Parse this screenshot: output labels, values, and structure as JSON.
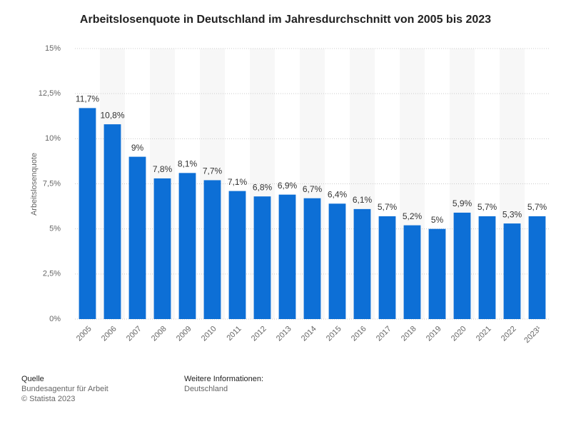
{
  "chart_data": {
    "type": "bar",
    "title": "Arbeitslosenquote in Deutschland im Jahresdurchschnitt von 2005 bis 2023",
    "y_label": "Arbeitslosenquote",
    "categories": [
      "2005",
      "2006",
      "2007",
      "2008",
      "2009",
      "2010",
      "2011",
      "2012",
      "2013",
      "2014",
      "2015",
      "2016",
      "2017",
      "2018",
      "2019",
      "2020",
      "2021",
      "2022",
      "2023¹"
    ],
    "values": [
      11.7,
      10.8,
      9,
      7.8,
      8.1,
      7.7,
      7.1,
      6.8,
      6.9,
      6.7,
      6.4,
      6.1,
      5.7,
      5.2,
      5,
      5.9,
      5.7,
      5.3,
      5.7
    ],
    "value_labels": [
      "11,7%",
      "10,8%",
      "9%",
      "7,8%",
      "8,1%",
      "7,7%",
      "7,1%",
      "6,8%",
      "6,9%",
      "6,7%",
      "6,4%",
      "6,1%",
      "5,7%",
      "5,2%",
      "5%",
      "5,9%",
      "5,7%",
      "5,3%",
      "5,7%"
    ],
    "color": "#0d6fd6",
    "ylim": [
      0,
      15
    ],
    "yticks": [
      {
        "value": 0,
        "label": "0%"
      },
      {
        "value": 2.5,
        "label": "2,5%"
      },
      {
        "value": 5,
        "label": "5%"
      },
      {
        "value": 7.5,
        "label": "7,5%"
      },
      {
        "value": 10,
        "label": "10%"
      },
      {
        "value": 12.5,
        "label": "12,5%"
      },
      {
        "value": 15,
        "label": "15%"
      }
    ],
    "grid": true
  },
  "footer": {
    "source_heading": "Quelle",
    "source": "Bundesagentur für Arbeit",
    "copyright": "© Statista 2023",
    "info_heading": "Weitere Informationen:",
    "info": "Deutschland"
  }
}
